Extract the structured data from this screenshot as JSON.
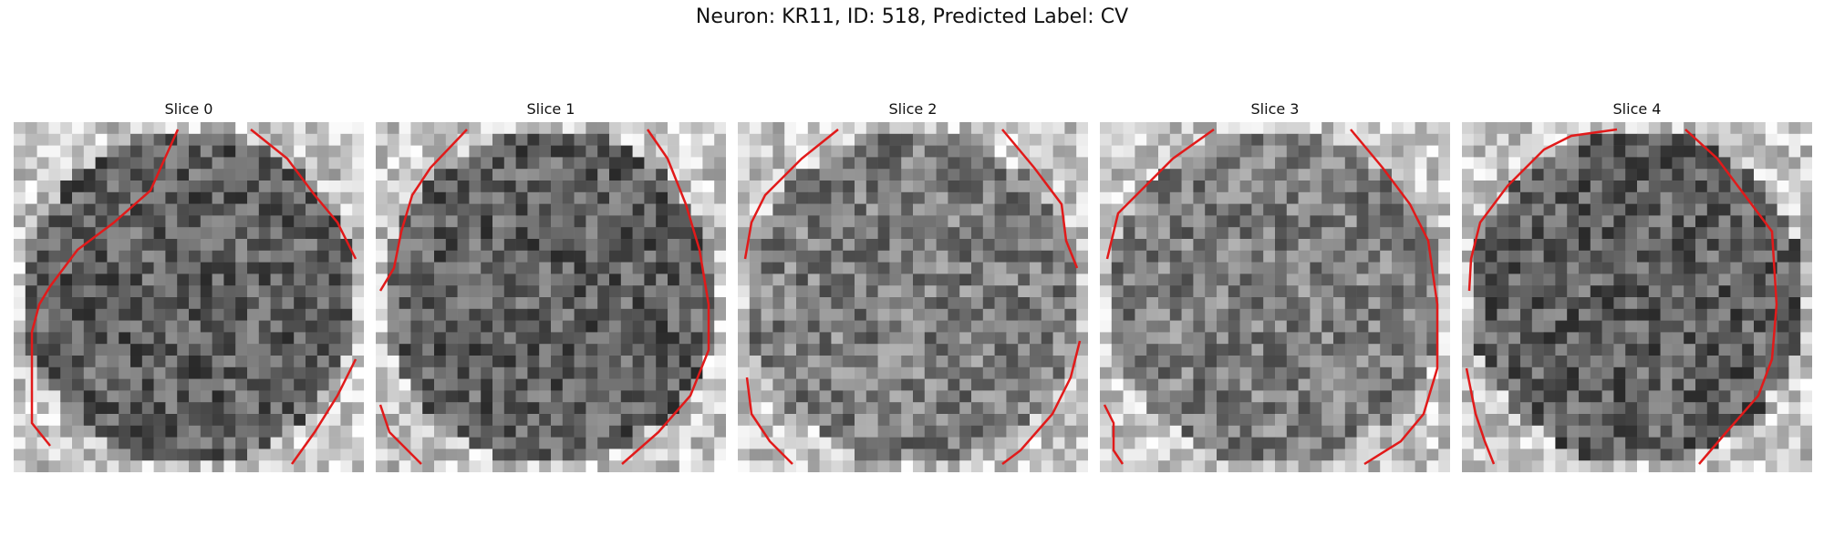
{
  "figure": {
    "title": "Neuron: KR11, ID: 518, Predicted Label: CV"
  },
  "panels": [
    {
      "title": "Slice 0"
    },
    {
      "title": "Slice 1"
    },
    {
      "title": "Slice 2"
    },
    {
      "title": "Slice 3"
    },
    {
      "title": "Slice 4"
    }
  ],
  "colors": {
    "contour": "#e11a1a",
    "background": "#ffffff"
  }
}
